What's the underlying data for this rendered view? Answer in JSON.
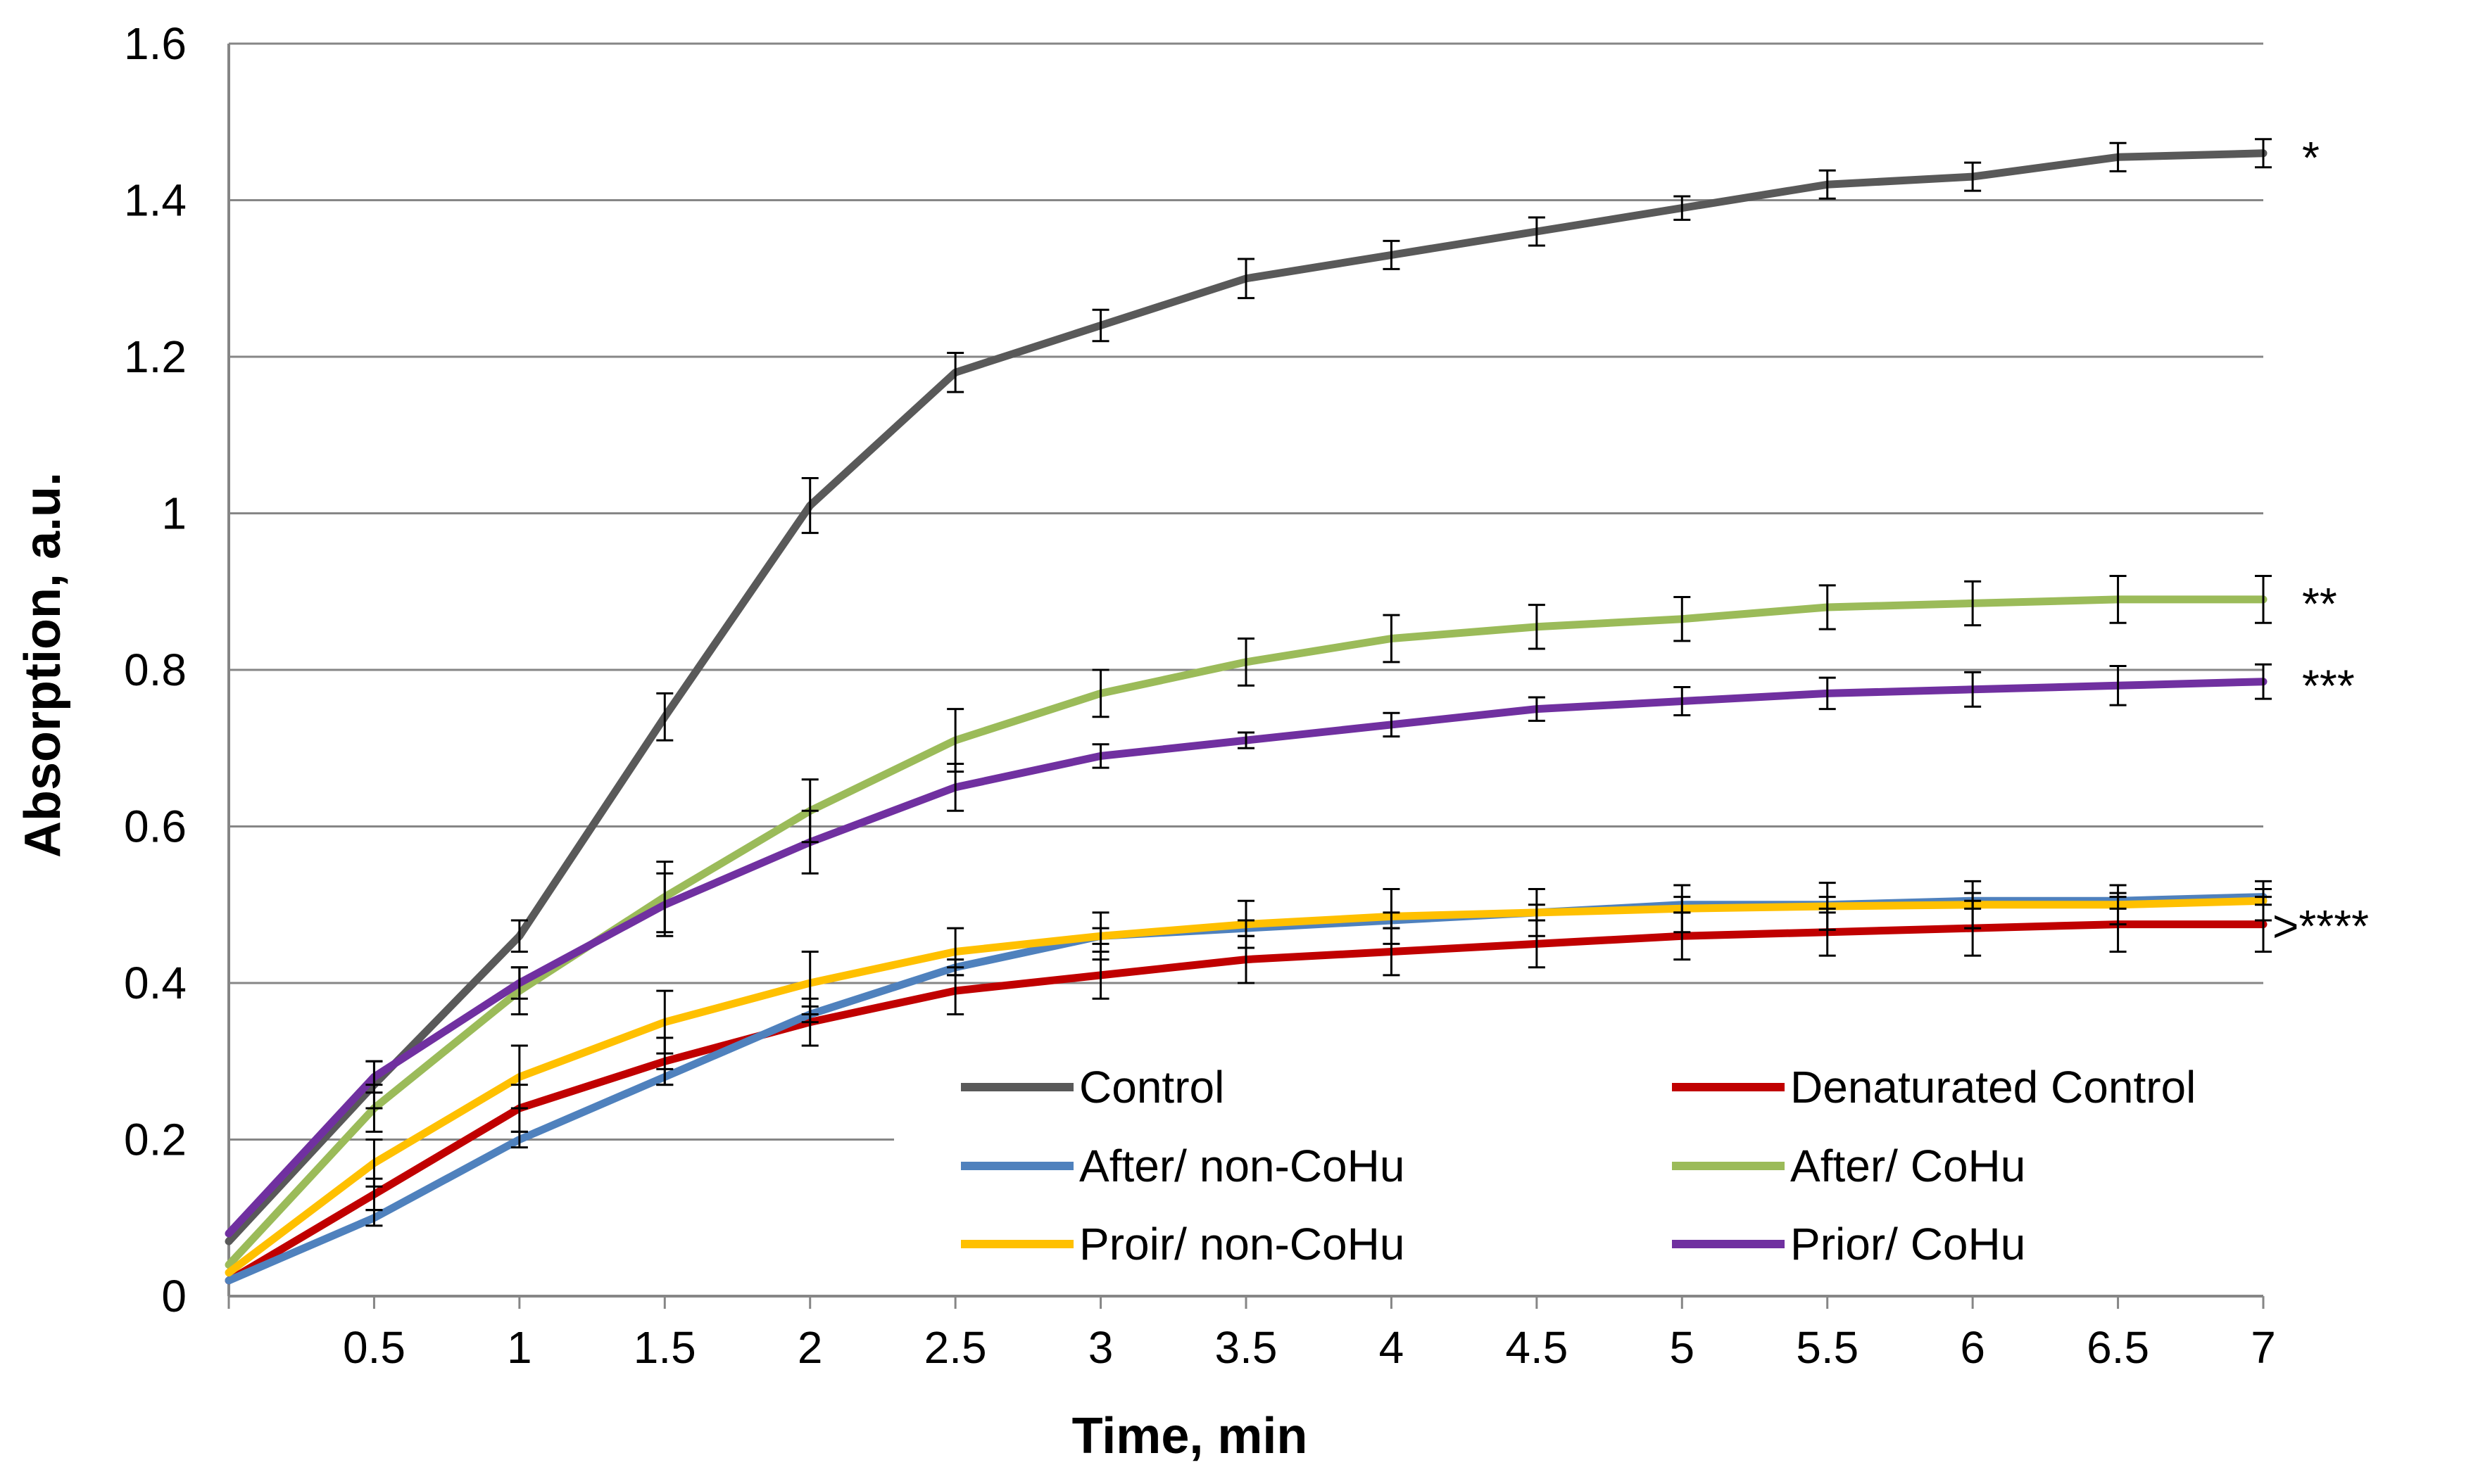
{
  "chart_data": {
    "type": "line",
    "title": "",
    "xlabel": "Time, min",
    "ylabel": "Absorption, a.u.",
    "xlim": [
      0,
      7
    ],
    "ylim": [
      0,
      1.6
    ],
    "x": [
      0,
      0.5,
      1,
      1.5,
      2,
      2.5,
      3,
      3.5,
      4,
      4.5,
      5,
      5.5,
      6,
      6.5,
      7
    ],
    "x_tick_labels": [
      "0.5",
      "1",
      "1.5",
      "2",
      "2.5",
      "3",
      "3.5",
      "4",
      "4.5",
      "5",
      "5.5",
      "6",
      "6.5",
      "7"
    ],
    "y_ticks": [
      0,
      0.2,
      0.4,
      0.6,
      0.8,
      1,
      1.2,
      1.4,
      1.6
    ],
    "y_tick_labels": [
      "0",
      "0.2",
      "0.4",
      "0.6",
      "0.8",
      "1",
      "1.2",
      "1.4",
      "1.6"
    ],
    "grid": "horizontal",
    "legend_position": "bottom-right",
    "series": [
      {
        "name": "Control",
        "color": "#595959",
        "values": [
          0.07,
          0.27,
          0.46,
          0.74,
          1.01,
          1.18,
          1.24,
          1.3,
          1.33,
          1.36,
          1.39,
          1.42,
          1.43,
          1.455,
          1.46
        ],
        "errors": [
          0.02,
          0.03,
          0.02,
          0.03,
          0.035,
          0.025,
          0.02,
          0.025,
          0.018,
          0.018,
          0.015,
          0.018,
          0.018,
          0.018,
          0.018
        ]
      },
      {
        "name": "Denaturated Control",
        "color": "#C00000",
        "values": [
          0.02,
          0.13,
          0.24,
          0.3,
          0.35,
          0.39,
          0.41,
          0.43,
          0.44,
          0.45,
          0.46,
          0.465,
          0.47,
          0.475,
          0.475
        ],
        "errors": [
          0.01,
          0.02,
          0.03,
          0.03,
          0.03,
          0.03,
          0.03,
          0.03,
          0.03,
          0.03,
          0.03,
          0.03,
          0.035,
          0.035,
          0.035
        ]
      },
      {
        "name": "After/ non-CoHu",
        "color": "#4F81BD",
        "values": [
          0.02,
          0.1,
          0.2,
          0.28,
          0.36,
          0.42,
          0.46,
          0.47,
          0.48,
          0.49,
          0.5,
          0.5,
          0.505,
          0.505,
          0.51
        ],
        "errors": [
          0.01,
          0.01,
          0.01,
          0.01,
          0.01,
          0.01,
          0.01,
          0.01,
          0.01,
          0.01,
          0.01,
          0.01,
          0.01,
          0.01,
          0.01
        ]
      },
      {
        "name": "After/ CoHu",
        "color": "#9BBB59",
        "values": [
          0.04,
          0.24,
          0.39,
          0.51,
          0.62,
          0.71,
          0.77,
          0.81,
          0.84,
          0.855,
          0.865,
          0.88,
          0.885,
          0.89,
          0.89
        ],
        "errors": [
          0.01,
          0.03,
          0.03,
          0.045,
          0.04,
          0.04,
          0.03,
          0.03,
          0.03,
          0.028,
          0.028,
          0.028,
          0.028,
          0.03,
          0.03
        ]
      },
      {
        "name": "Proir/ non-CoHu",
        "color": "#FFC000",
        "values": [
          0.03,
          0.17,
          0.28,
          0.35,
          0.4,
          0.44,
          0.46,
          0.475,
          0.485,
          0.49,
          0.495,
          0.498,
          0.5,
          0.5,
          0.505
        ],
        "errors": [
          0.01,
          0.03,
          0.04,
          0.04,
          0.04,
          0.03,
          0.03,
          0.03,
          0.035,
          0.03,
          0.03,
          0.03,
          0.03,
          0.025,
          0.025
        ]
      },
      {
        "name": "Prior/ CoHu",
        "color": "#7030A0",
        "values": [
          0.08,
          0.28,
          0.4,
          0.5,
          0.58,
          0.65,
          0.69,
          0.71,
          0.73,
          0.75,
          0.76,
          0.77,
          0.775,
          0.78,
          0.785
        ],
        "errors": [
          0.01,
          0.02,
          0.02,
          0.04,
          0.04,
          0.03,
          0.015,
          0.01,
          0.015,
          0.015,
          0.018,
          0.02,
          0.022,
          0.025,
          0.022
        ]
      }
    ],
    "annotations": [
      {
        "text": "*",
        "series": "Control"
      },
      {
        "text": "**",
        "series": "After/ CoHu"
      },
      {
        "text": "***",
        "series": "Prior/ CoHu"
      },
      {
        "text": ">****",
        "series": "Proir/ non-CoHu"
      }
    ]
  }
}
